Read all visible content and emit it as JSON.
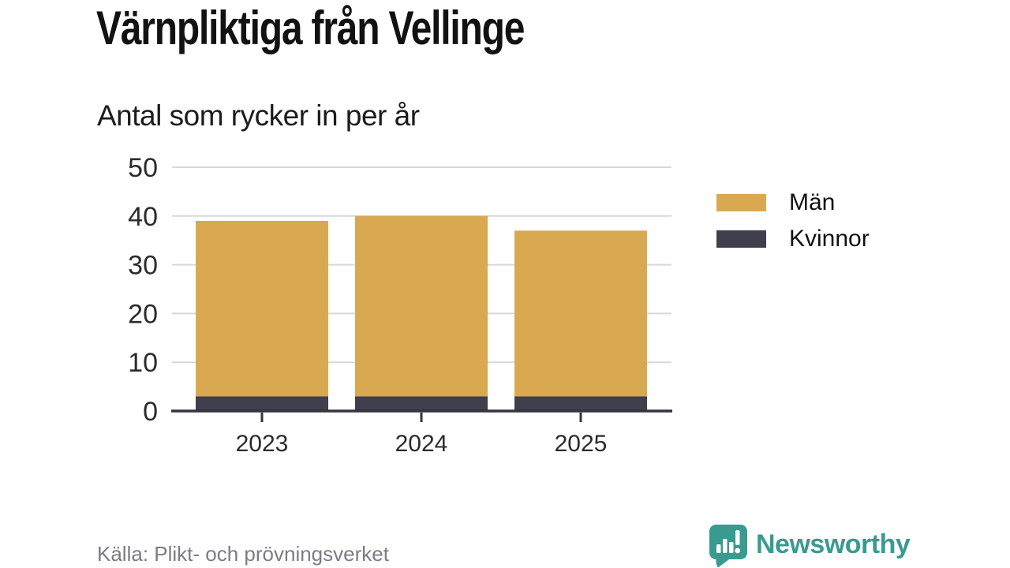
{
  "chart_data": {
    "type": "bar",
    "stacked": true,
    "title": "Värnpliktiga från Vellinge",
    "subtitle": "Antal som rycker in per år",
    "categories": [
      "2023",
      "2024",
      "2025"
    ],
    "series": [
      {
        "name": "Män",
        "color": "#D9A951",
        "values": [
          36,
          37,
          34
        ]
      },
      {
        "name": "Kvinnor",
        "color": "#3F3F4E",
        "values": [
          3,
          3,
          3
        ]
      }
    ],
    "stacked_totals": [
      39,
      40,
      37
    ],
    "ylim": [
      0,
      50
    ],
    "yticks": [
      0,
      10,
      20,
      30,
      40,
      50
    ],
    "grid": true,
    "legend_position": "right",
    "xlabel": "",
    "ylabel": ""
  },
  "footer": {
    "source": "Källa: Plikt- och prövningsverket",
    "brand": "Newsworthy"
  },
  "colors": {
    "gridline": "#D8D8D8",
    "axis": "#35353F",
    "tick_labels": "#2B2B2B",
    "brand_teal": "#399A90",
    "source_text": "#7C7C86",
    "background": "#FFFFFF"
  }
}
